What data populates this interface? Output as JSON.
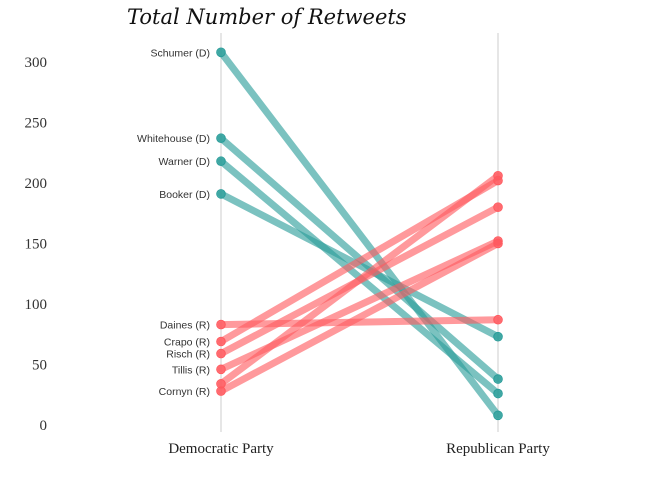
{
  "chart_data": {
    "type": "line",
    "title": "Total Number of Retweets",
    "xlabel": "",
    "ylabel": "",
    "categories": [
      "Democratic Party",
      "Republican Party"
    ],
    "ylim": [
      0,
      320
    ],
    "yticks": [
      0,
      50,
      100,
      150,
      200,
      250,
      300
    ],
    "grid": "vertical",
    "legend": "none",
    "colors": {
      "democrat": "#2a9d9a",
      "republican": "#ff5a5f",
      "axis": "#cccccc"
    },
    "series": [
      {
        "label": "Schumer (D)",
        "party": "democrat",
        "values": [
          308,
          8
        ]
      },
      {
        "label": "Whitehouse (D)",
        "party": "democrat",
        "values": [
          237,
          38
        ]
      },
      {
        "label": "Warner (D)",
        "party": "democrat",
        "values": [
          218,
          26
        ]
      },
      {
        "label": "Booker (D)",
        "party": "democrat",
        "values": [
          191,
          73
        ]
      },
      {
        "label": "Daines (R)",
        "party": "republican",
        "values": [
          83,
          87
        ]
      },
      {
        "label": "Crapo (R)",
        "party": "republican",
        "values": [
          69,
          202
        ]
      },
      {
        "label": "Risch (R)",
        "party": "republican",
        "values": [
          59,
          180
        ]
      },
      {
        "label": "Tillis (R)",
        "party": "republican",
        "values": [
          46,
          152
        ]
      },
      {
        "label": "",
        "party": "republican",
        "values": [
          34,
          206
        ]
      },
      {
        "label": "Cornyn (R)",
        "party": "republican",
        "values": [
          28,
          150
        ]
      }
    ]
  }
}
